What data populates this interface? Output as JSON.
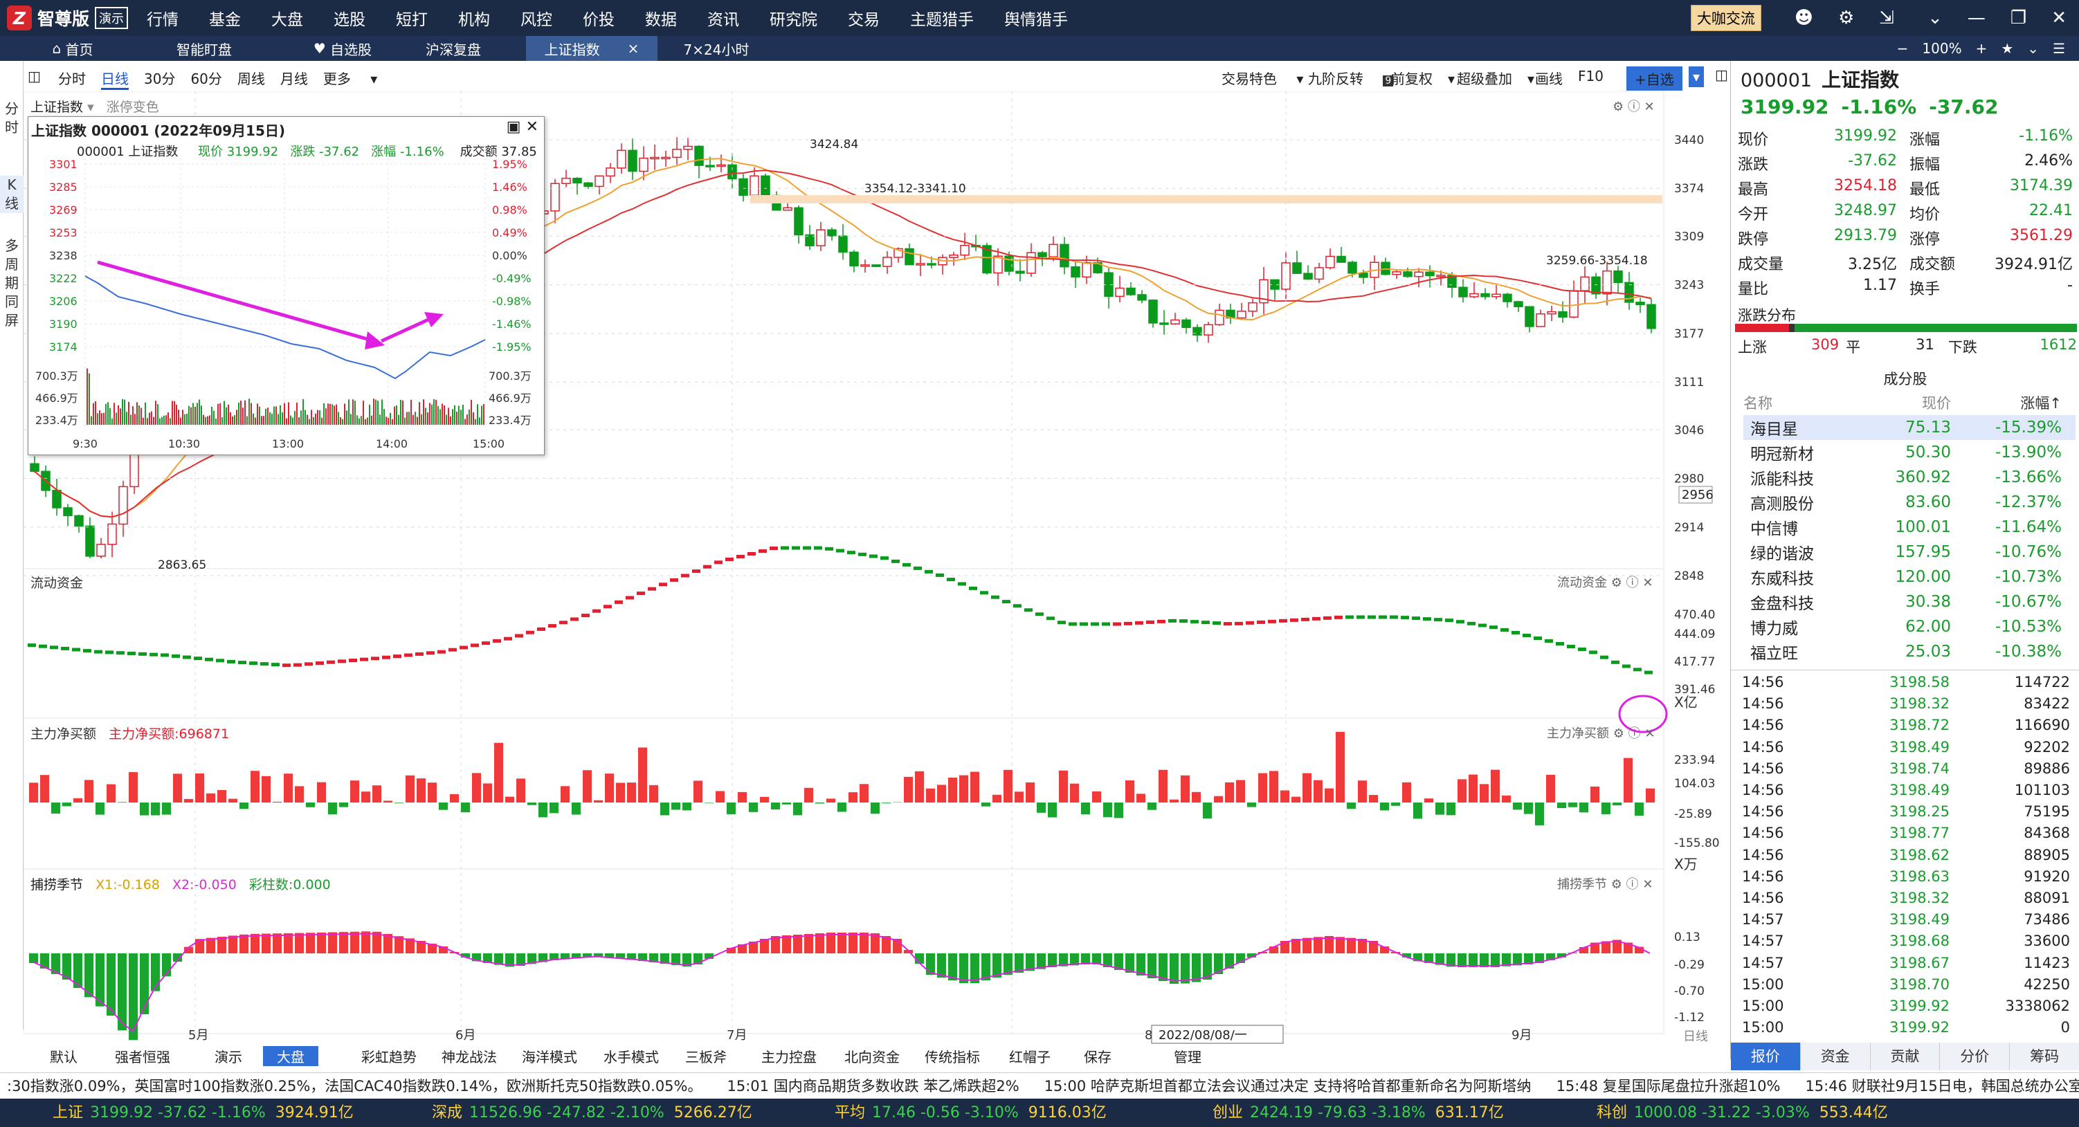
{
  "app": {
    "name": "智尊版",
    "demo": "演示"
  },
  "topnav": [
    "行情",
    "基金",
    "大盘",
    "选股",
    "短打",
    "机构",
    "风控",
    "价投",
    "数据",
    "资讯",
    "研究院",
    "交易",
    "主题猎手",
    "舆情猎手"
  ],
  "topright": {
    "dakashare": "大咖交流"
  },
  "tabs": [
    {
      "label": "首页"
    },
    {
      "label": "智能盯盘"
    },
    {
      "label": "自选股"
    },
    {
      "label": "沪深复盘"
    },
    {
      "label": "上证指数",
      "close": "×"
    },
    {
      "label": "7×24小时"
    }
  ],
  "tabright": {
    "minus": "−",
    "zoom": "100%",
    "plus": "+"
  },
  "leftstrip": {
    "fenshi": [
      "分",
      "时"
    ],
    "kline": [
      "K",
      "线"
    ],
    "multi": [
      "多",
      "周",
      "期",
      "同",
      "屏"
    ]
  },
  "toolbar": {
    "items": [
      "分时",
      "日线",
      "30分",
      "60分",
      "周线",
      "月线",
      "更多"
    ],
    "right": [
      "交易特色",
      "九阶反转",
      "前复权",
      "超级叠加",
      "画线",
      "F10"
    ],
    "add_label": "+自选",
    "jiujie_badge": "9"
  },
  "main": {
    "label": "上证指数",
    "zhangting": "涨停变色"
  },
  "chart_data": [
    {
      "type": "candlestick",
      "name": "上证指数日线",
      "y_ticks": [
        3440,
        3374,
        3309,
        3243,
        3177,
        3111,
        3046,
        2980,
        2914,
        2848
      ],
      "current_price_tag": "2956",
      "annotations": [
        "3424.84",
        "3354.12-3341.10",
        "3259.66-3354.18",
        "2863.65"
      ],
      "x_labels": [
        "5月",
        "6月",
        "7月",
        "8月",
        "9月"
      ],
      "cursor_date": "2022/08/08/一",
      "x_axis_right": "日线"
    },
    {
      "type": "line",
      "name": "流动资金",
      "y_ticks": [
        "470.40",
        "444.09",
        "417.77",
        "391.46"
      ],
      "unit": "X亿"
    },
    {
      "type": "bar",
      "name": "主力净买额",
      "value_label": "主力净买额:696871",
      "y_ticks": [
        "233.94",
        "104.03",
        "-25.89",
        "-155.80"
      ],
      "unit": "X万"
    },
    {
      "type": "bar",
      "name": "捕捞季节",
      "x1": "X1:-0.168",
      "x2": "X2:-0.050",
      "caizhu": "彩柱数:0.000",
      "y_ticks": [
        "0.13",
        "-0.29",
        "-0.70",
        "-1.12"
      ]
    }
  ],
  "popup": {
    "title": "上证指数 000001  (2022年09月15日)",
    "info": {
      "code": "000001 上证指数",
      "price": "现价 3199.92",
      "change": "涨跌 -37.62",
      "pct": "涨幅 -1.16%",
      "vol": "成交额 37.85"
    },
    "left_ticks": [
      "3301",
      "3285",
      "3269",
      "3253",
      "3238",
      "3222",
      "3206",
      "3190",
      "3174"
    ],
    "right_ticks": [
      "1.95%",
      "1.46%",
      "0.98%",
      "0.49%",
      "0.00%",
      "-0.49%",
      "-0.98%",
      "-1.46%",
      "-1.95%"
    ],
    "vol_ticks": [
      "700.3万",
      "466.9万",
      "233.4万"
    ],
    "times": [
      "9:30",
      "10:30",
      "13:00",
      "14:00",
      "15:00"
    ]
  },
  "right": {
    "code": "000001",
    "name": "上证指数",
    "price": "3199.92",
    "chg": "-1.16%",
    "chgv": "-37.62",
    "kv": [
      [
        "现价",
        "3199.92",
        "涨幅",
        "-1.16%"
      ],
      [
        "涨跌",
        "-37.62",
        "振幅",
        "2.46%"
      ],
      [
        "最高",
        "3254.18",
        "最低",
        "3174.39"
      ],
      [
        "今开",
        "3248.97",
        "均价",
        "22.41"
      ],
      [
        "跌停",
        "2913.79",
        "涨停",
        "3561.29"
      ],
      [
        "成交量",
        "3.25亿",
        "成交额",
        "3924.91亿"
      ],
      [
        "量比",
        "1.17",
        "换手",
        "-"
      ]
    ],
    "dist": {
      "title": "涨跌分布",
      "up_label": "上涨",
      "up": "309",
      "flat_label": "平",
      "flat": "31",
      "down_label": "下跌",
      "down": "1612"
    },
    "comp_title": "成分股",
    "comp_head": [
      "名称",
      "现价",
      "涨幅↑"
    ],
    "comp": [
      [
        "海目星",
        "75.13",
        "-15.39%"
      ],
      [
        "明冠新材",
        "50.30",
        "-13.90%"
      ],
      [
        "派能科技",
        "360.92",
        "-13.66%"
      ],
      [
        "高测股份",
        "83.60",
        "-12.37%"
      ],
      [
        "中信博",
        "100.01",
        "-11.64%"
      ],
      [
        "绿的谐波",
        "157.95",
        "-10.76%"
      ],
      [
        "东威科技",
        "120.00",
        "-10.73%"
      ],
      [
        "金盘科技",
        "30.38",
        "-10.67%"
      ],
      [
        "博力威",
        "62.00",
        "-10.53%"
      ],
      [
        "福立旺",
        "25.03",
        "-10.38%"
      ]
    ],
    "ticks": [
      [
        "14:56",
        "3198.58",
        "114722"
      ],
      [
        "14:56",
        "3198.32",
        "83422"
      ],
      [
        "14:56",
        "3198.72",
        "116690"
      ],
      [
        "14:56",
        "3198.49",
        "92202"
      ],
      [
        "14:56",
        "3198.74",
        "89886"
      ],
      [
        "14:56",
        "3198.49",
        "101103"
      ],
      [
        "14:56",
        "3198.25",
        "75195"
      ],
      [
        "14:56",
        "3198.77",
        "84368"
      ],
      [
        "14:56",
        "3198.62",
        "88905"
      ],
      [
        "14:56",
        "3198.63",
        "91920"
      ],
      [
        "14:56",
        "3198.32",
        "88091"
      ],
      [
        "14:57",
        "3198.49",
        "73486"
      ],
      [
        "14:57",
        "3198.68",
        "33600"
      ],
      [
        "14:57",
        "3198.67",
        "11423"
      ],
      [
        "15:00",
        "3198.70",
        "42250"
      ],
      [
        "15:00",
        "3199.92",
        "3338062"
      ],
      [
        "15:00",
        "3199.92",
        "0"
      ]
    ],
    "tabs": [
      "报价",
      "资金",
      "贡献",
      "分价",
      "筹码"
    ]
  },
  "bottomtabs": [
    "默认",
    "强者恒强",
    "演示",
    "大盘",
    "彩虹趋势",
    "神龙战法",
    "海洋模式",
    "水手模式",
    "三板斧",
    "主力控盘",
    "北向资金",
    "传统指标",
    "红帽子",
    "保存",
    "管理"
  ],
  "news": [
    ":30指数涨0.09%，英国富时100指数涨0.25%，法国CAC40指数跌0.14%，欧洲斯托克50指数跌0.05%。",
    "15:01 国内商品期货多数收跌 苯乙烯跌超2%",
    "15:00 哈萨克斯坦首都立法会议通过决定 支持将哈首都重新命名为阿斯塔纳",
    "15:48 复星国际尾盘拉升涨超10%",
    "15:46 财联社9月15日电，韩国总统办公室：韩"
  ],
  "status": [
    {
      "name": "上证",
      "vals": "3199.92  -37.62  -1.16%",
      "amt": "3924.91亿"
    },
    {
      "name": "深成",
      "vals": "11526.96  -247.82  -2.10%",
      "amt": "5266.27亿"
    },
    {
      "name": "平均",
      "vals": "17.46  -0.56  -3.10%",
      "amt": "9116.03亿"
    },
    {
      "name": "创业",
      "vals": "2424.19  -79.63  -3.18%",
      "amt": "631.17亿"
    },
    {
      "name": "科创",
      "vals": "1000.08  -31.22  -3.03%",
      "amt": "553.44亿"
    }
  ]
}
